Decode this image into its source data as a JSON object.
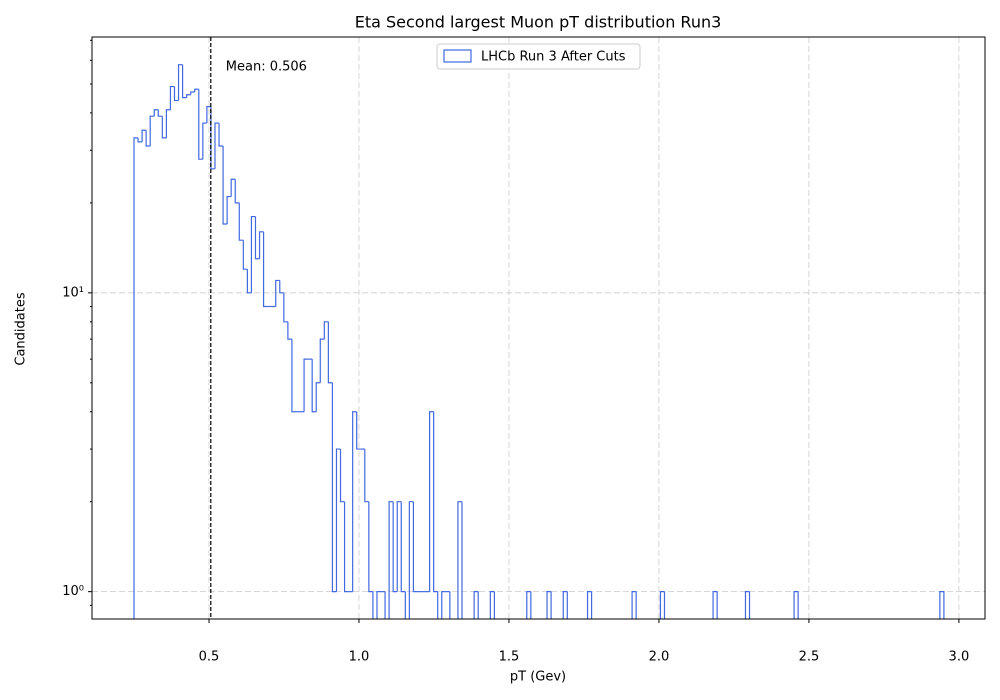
{
  "chart_data": {
    "type": "histogram",
    "title": "Eta Second largest Muon pT distribution Run3",
    "xlabel": "pT (Gev)",
    "ylabel": "Candidates",
    "yscale": "log",
    "grid": true,
    "legend_loc": "upper center",
    "xlim": [
      0.11,
      3.087
    ],
    "ylim": [
      0.81,
      71.8
    ],
    "xticks": [
      0.5,
      {
        "value": 1,
        "label": "1.0"
      },
      1.5,
      {
        "value": 2,
        "label": "2.0"
      },
      2.5,
      {
        "value": 3,
        "label": "3.0"
      }
    ],
    "yticks": [
      {
        "value": 1,
        "label": "10⁰"
      },
      {
        "value": 10,
        "label": "10¹"
      }
    ],
    "yminorticks": [
      0.9,
      2,
      3,
      4,
      5,
      6,
      7,
      8,
      9,
      20,
      30,
      40,
      50,
      60,
      70
    ],
    "mean_line": {
      "value": 0.506,
      "label": "Mean: 0.506"
    },
    "bins": [
      0.25,
      0.2635,
      0.277,
      0.2905,
      0.304,
      0.3175,
      0.331,
      0.3445,
      0.358,
      0.3715,
      0.385,
      0.3985,
      0.412,
      0.4255,
      0.439,
      0.4525,
      0.466,
      0.4795,
      0.493,
      0.5065,
      0.52,
      0.5335,
      0.547,
      0.5605,
      0.574,
      0.5875,
      0.601,
      0.6145,
      0.628,
      0.6415,
      0.655,
      0.6685,
      0.682,
      0.6955,
      0.709,
      0.7225,
      0.736,
      0.7495,
      0.763,
      0.7765,
      0.79,
      0.8035,
      0.817,
      0.8305,
      0.844,
      0.8575,
      0.871,
      0.8845,
      0.898,
      0.9115,
      0.925,
      0.9385,
      0.952,
      0.9655,
      0.979,
      0.9925,
      1.006,
      1.0195,
      1.033,
      1.0465,
      1.06,
      1.0735,
      1.087,
      1.1005,
      1.114,
      1.1275,
      1.141,
      1.1545,
      1.168,
      1.1815,
      1.195,
      1.2085,
      1.222,
      1.2355,
      1.249,
      1.2625,
      1.276,
      1.2895,
      1.303,
      1.3165,
      1.33,
      1.3435,
      1.357,
      1.3705,
      1.384,
      1.3975,
      1.411,
      1.4245,
      1.438,
      1.4515,
      1.465,
      1.4785,
      1.492,
      1.5055,
      1.519,
      1.5325,
      1.546,
      1.5595,
      1.573,
      1.5865,
      1.6,
      1.6135,
      1.627,
      1.6405,
      1.654,
      1.6675,
      1.681,
      1.6945,
      1.708,
      1.7215,
      1.735,
      1.7485,
      1.762,
      1.7755,
      1.789,
      1.8025,
      1.816,
      1.8295,
      1.843,
      1.8565,
      1.87,
      1.8835,
      1.897,
      1.9105,
      1.924,
      1.9375,
      1.951,
      1.9645,
      1.978,
      1.9915,
      2.005,
      2.0185,
      2.032,
      2.0455,
      2.059,
      2.0725,
      2.086,
      2.0995,
      2.113,
      2.1265,
      2.14,
      2.1535,
      2.167,
      2.1805,
      2.194,
      2.2075,
      2.221,
      2.2345,
      2.248,
      2.2615,
      2.275,
      2.2885,
      2.302,
      2.3155,
      2.329,
      2.3425,
      2.356,
      2.3695,
      2.383,
      2.3965,
      2.41,
      2.4235,
      2.437,
      2.4505,
      2.464,
      2.4775,
      2.491,
      2.5045,
      2.518,
      2.5315,
      2.545,
      2.5585,
      2.572,
      2.5855,
      2.599,
      2.6125,
      2.626,
      2.6395,
      2.653,
      2.6665,
      2.68,
      2.6935,
      2.707,
      2.7205,
      2.734,
      2.7475,
      2.761,
      2.7745,
      2.788,
      2.8015,
      2.815,
      2.8285,
      2.842,
      2.8555,
      2.869,
      2.8825,
      2.896,
      2.9095,
      2.923,
      2.9365,
      2.95
    ],
    "series": [
      {
        "name": "LHCb Run 3 After Cuts",
        "color": "#4169e1",
        "values": [
          33,
          32,
          35,
          31,
          39,
          41,
          39,
          33,
          41,
          49,
          44,
          58,
          45,
          46,
          47,
          48,
          28,
          37,
          42,
          26,
          37,
          31,
          17,
          21,
          24,
          20,
          15,
          12,
          10,
          18,
          13,
          16,
          9,
          9,
          9,
          11,
          10,
          8,
          7,
          4,
          4,
          4,
          6,
          6,
          4,
          5,
          7,
          8,
          5,
          1,
          3,
          2,
          1,
          1,
          4,
          3,
          3,
          2,
          1,
          0,
          1,
          1,
          0,
          2,
          1,
          2,
          1,
          0,
          2,
          1,
          1,
          1,
          1,
          4,
          1,
          0,
          1,
          1,
          0,
          0,
          2,
          0,
          0,
          0,
          1,
          0,
          0,
          0,
          1,
          0,
          0,
          0,
          0,
          0,
          0,
          0,
          0,
          1,
          0,
          0,
          0,
          0,
          1,
          0,
          0,
          0,
          1,
          0,
          0,
          0,
          0,
          0,
          1,
          0,
          0,
          0,
          0,
          0,
          0,
          0,
          0,
          0,
          0,
          1,
          0,
          0,
          0,
          0,
          0,
          0,
          1,
          0,
          0,
          0,
          0,
          0,
          0,
          0,
          0,
          0,
          0,
          0,
          0,
          1,
          0,
          0,
          0,
          0,
          0,
          0,
          0,
          1,
          0,
          0,
          0,
          0,
          0,
          0,
          0,
          0,
          0,
          0,
          0,
          1,
          0,
          0,
          0,
          0,
          0,
          0,
          0,
          0,
          0,
          0,
          0,
          0,
          0,
          0,
          0,
          0,
          0,
          0,
          0,
          0,
          0,
          0,
          0,
          0,
          0,
          0,
          0,
          0,
          0,
          0,
          0,
          0,
          0,
          0,
          0,
          1
        ]
      }
    ]
  }
}
